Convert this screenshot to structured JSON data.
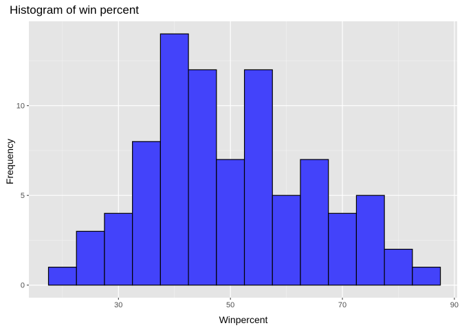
{
  "chart_data": {
    "type": "bar",
    "title": "Histogram of win percent",
    "xlabel": "Winpercent",
    "ylabel": "Frequency",
    "bins": [
      {
        "x0": 17.5,
        "x1": 22.5,
        "count": 1
      },
      {
        "x0": 22.5,
        "x1": 27.5,
        "count": 3
      },
      {
        "x0": 27.5,
        "x1": 32.5,
        "count": 4
      },
      {
        "x0": 32.5,
        "x1": 37.5,
        "count": 8
      },
      {
        "x0": 37.5,
        "x1": 42.5,
        "count": 14
      },
      {
        "x0": 42.5,
        "x1": 47.5,
        "count": 12
      },
      {
        "x0": 47.5,
        "x1": 52.5,
        "count": 7
      },
      {
        "x0": 52.5,
        "x1": 57.5,
        "count": 12
      },
      {
        "x0": 57.5,
        "x1": 62.5,
        "count": 5
      },
      {
        "x0": 62.5,
        "x1": 67.5,
        "count": 7
      },
      {
        "x0": 67.5,
        "x1": 72.5,
        "count": 4
      },
      {
        "x0": 72.5,
        "x1": 77.5,
        "count": 5
      },
      {
        "x0": 77.5,
        "x1": 82.5,
        "count": 2
      },
      {
        "x0": 82.5,
        "x1": 87.5,
        "count": 1
      }
    ],
    "xlim": [
      14,
      90.5
    ],
    "ylim": [
      -0.7,
      14.7
    ],
    "x_ticks": [
      30,
      50,
      70,
      90
    ],
    "y_ticks": [
      0,
      5,
      10
    ],
    "grid": true,
    "colors": {
      "bar_fill": "#4343fa",
      "bar_stroke": "#000000",
      "panel_background": "#e5e5e5",
      "grid_major": "#ffffff",
      "grid_minor": "#f2f2f2"
    }
  }
}
